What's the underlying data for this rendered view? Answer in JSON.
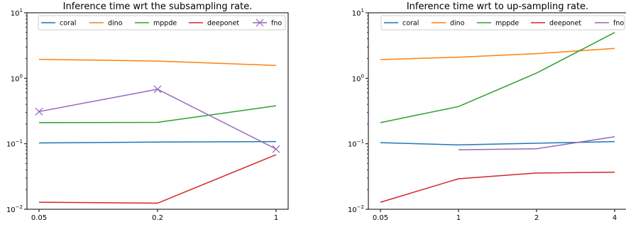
{
  "chart_data": [
    {
      "type": "line",
      "title": "Inference time wrt the subsampling rate.",
      "xlabel": "",
      "ylabel": "",
      "yscale": "log",
      "ylim": [
        0.01,
        10
      ],
      "y_ticks": [
        {
          "value": 0.01,
          "base": "10",
          "exp": "−2"
        },
        {
          "value": 0.1,
          "base": "10",
          "exp": "−1"
        },
        {
          "value": 1,
          "base": "10",
          "exp": "0"
        },
        {
          "value": 10,
          "base": "10",
          "exp": "1"
        }
      ],
      "categories": [
        "0.05",
        "0.2",
        "1"
      ],
      "legend_position": "top",
      "legend_columns": 5,
      "series": [
        {
          "name": "coral",
          "color": "#1f77b4",
          "marker": "none",
          "values": [
            0.103,
            0.106,
            0.108
          ]
        },
        {
          "name": "dino",
          "color": "#ff7f0e",
          "marker": "none",
          "values": [
            1.95,
            1.83,
            1.57
          ]
        },
        {
          "name": "mppde",
          "color": "#2ca02c",
          "marker": "none",
          "values": [
            0.21,
            0.212,
            0.38
          ]
        },
        {
          "name": "deeponet",
          "color": "#d62728",
          "marker": "none",
          "values": [
            0.0128,
            0.0124,
            0.068
          ]
        },
        {
          "name": "fno",
          "color": "#9467bd",
          "marker": "x",
          "values": [
            0.31,
            0.68,
            0.083
          ]
        }
      ]
    },
    {
      "type": "line",
      "title": "Inference time wrt to up-sampling rate.",
      "xlabel": "",
      "ylabel": "",
      "yscale": "log",
      "ylim": [
        0.01,
        10
      ],
      "y_ticks": [
        {
          "value": 0.01,
          "base": "10",
          "exp": "−2"
        },
        {
          "value": 0.1,
          "base": "10",
          "exp": "−1"
        },
        {
          "value": 1,
          "base": "10",
          "exp": "0"
        },
        {
          "value": 10,
          "base": "10",
          "exp": "1"
        }
      ],
      "categories": [
        "0.05",
        "1",
        "2",
        "4"
      ],
      "legend_position": "top",
      "legend_columns": 5,
      "series": [
        {
          "name": "coral",
          "color": "#1f77b4",
          "marker": "none",
          "values": [
            0.104,
            0.096,
            0.102,
            0.108
          ]
        },
        {
          "name": "dino",
          "color": "#ff7f0e",
          "marker": "none",
          "values": [
            1.93,
            2.1,
            2.38,
            2.85
          ]
        },
        {
          "name": "mppde",
          "color": "#2ca02c",
          "marker": "none",
          "values": [
            0.21,
            0.37,
            1.2,
            5.0
          ]
        },
        {
          "name": "deeponet",
          "color": "#d62728",
          "marker": "none",
          "values": [
            0.0128,
            0.0292,
            0.0358,
            0.0368
          ]
        },
        {
          "name": "fno",
          "color": "#9467bd",
          "marker": "none",
          "values": [
            null,
            0.081,
            0.084,
            0.128
          ]
        }
      ]
    }
  ]
}
